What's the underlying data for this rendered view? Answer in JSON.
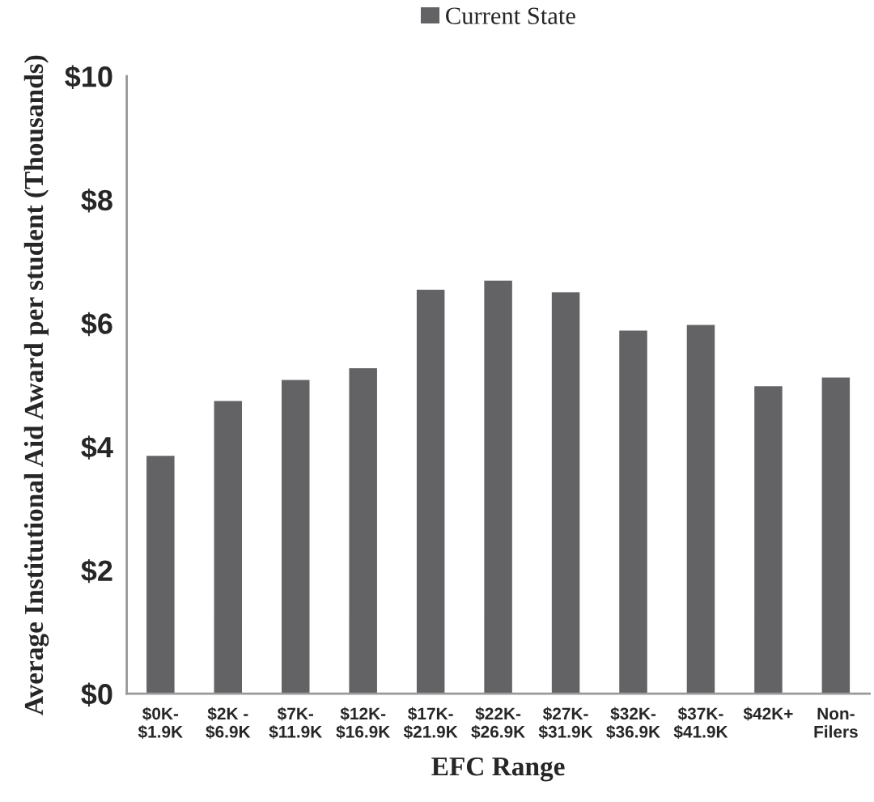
{
  "chart_data": {
    "type": "bar",
    "xlabel": "EFC Range",
    "ylabel": "Average Institutional Aid Award per student (Thousands)",
    "categories": [
      "$0K-\n$1.9K",
      "$2K -\n$6.9K",
      "$7K-\n$11.9K",
      "$12K-\n$16.9K",
      "$17K-\n$21.9K",
      "$22K-\n$26.9K",
      "$27K-\n$31.9K",
      "$32K-\n$36.9K",
      "$37K-\n$41.9K",
      "$42K+",
      "Non-\nFilers"
    ],
    "series": [
      {
        "name": "Current State",
        "color": "#636366",
        "values": [
          3.86,
          4.75,
          5.09,
          5.28,
          6.55,
          6.7,
          6.51,
          5.89,
          5.98,
          4.99,
          5.13
        ]
      }
    ],
    "ylim": [
      0,
      10
    ],
    "yticks": [
      {
        "value": 0,
        "label": "$0"
      },
      {
        "value": 2,
        "label": "$2"
      },
      {
        "value": 4,
        "label": "$4"
      },
      {
        "value": 6,
        "label": "$6"
      },
      {
        "value": 8,
        "label": "$8"
      },
      {
        "value": 10,
        "label": "$10"
      }
    ],
    "grid": false,
    "legend": "top"
  }
}
